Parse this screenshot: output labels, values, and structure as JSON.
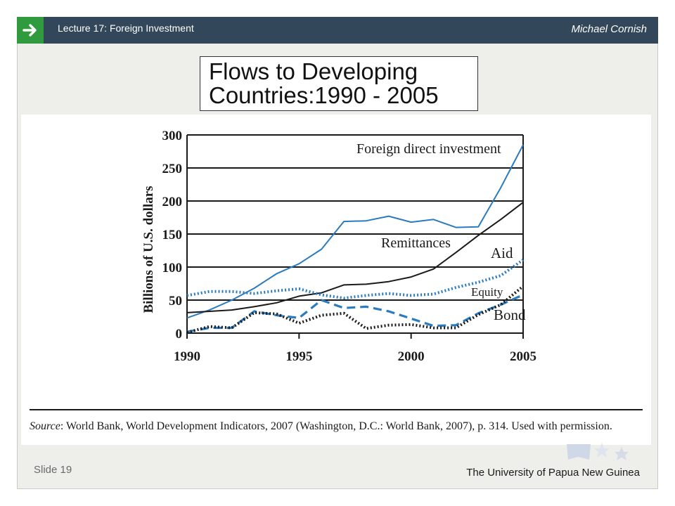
{
  "header": {
    "lecture": "Lecture 17:  Foreign Investment",
    "author": "Michael Cornish"
  },
  "title": {
    "line1": "Flows to Developing",
    "line2": "Countries:1990 - 2005"
  },
  "footer": {
    "slide": "Slide 19",
    "university": "The University of Papua New Guinea"
  },
  "source": {
    "prefix": "Source",
    "rest": ": World Bank, World Development Indicators, 2007 (Washington, D.C.: World Bank, 2007), p. 314. Used with permission."
  },
  "colors": {
    "header_bg": "#33475b",
    "accent_green": "#2f9a3e",
    "blue": "#2a7bbf",
    "black": "#1a1a1a"
  },
  "chart_data": {
    "type": "line",
    "ylabel": "Billions of U.S. dollars",
    "xlabel": "",
    "xlim": [
      1990,
      2005
    ],
    "ylim": [
      0,
      300
    ],
    "y_ticks": [
      0,
      50,
      100,
      150,
      200,
      250,
      300
    ],
    "x_ticks": [
      1990,
      1995,
      2000,
      2005
    ],
    "grid": "horizontal",
    "series": [
      {
        "name": "Foreign direct investment",
        "color": "#2a7bbf",
        "style": "solid",
        "x": [
          1990,
          1991,
          1992,
          1993,
          1994,
          1995,
          1996,
          1997,
          1998,
          1999,
          2000,
          2001,
          2002,
          2003,
          2004,
          2005
        ],
        "y": [
          23,
          35,
          50,
          68,
          90,
          105,
          127,
          169,
          170,
          177,
          168,
          172,
          160,
          161,
          220,
          285
        ]
      },
      {
        "name": "Remittances",
        "color": "#1a1a1a",
        "style": "solid",
        "x": [
          1990,
          1991,
          1992,
          1993,
          1994,
          1995,
          1996,
          1997,
          1998,
          1999,
          2000,
          2001,
          2002,
          2003,
          2004,
          2005
        ],
        "y": [
          31,
          33,
          35,
          40,
          46,
          56,
          61,
          73,
          74,
          78,
          85,
          97,
          122,
          148,
          172,
          198
        ]
      },
      {
        "name": "Aid",
        "color": "#2a7bbf",
        "style": "dotted",
        "x": [
          1990,
          1991,
          1992,
          1993,
          1994,
          1995,
          1996,
          1997,
          1998,
          1999,
          2000,
          2001,
          2002,
          2003,
          2004,
          2005
        ],
        "y": [
          57,
          63,
          63,
          60,
          64,
          67,
          58,
          53,
          57,
          60,
          57,
          59,
          69,
          77,
          87,
          111
        ]
      },
      {
        "name": "Equity",
        "color": "#2a7bbf",
        "style": "dashed",
        "x": [
          1990,
          1991,
          1992,
          1993,
          1994,
          1995,
          1996,
          1997,
          1998,
          1999,
          2000,
          2001,
          2002,
          2003,
          2004,
          2005
        ],
        "y": [
          2,
          8,
          8,
          33,
          27,
          23,
          50,
          38,
          40,
          33,
          22,
          11,
          12,
          30,
          43,
          58
        ]
      },
      {
        "name": "Bond",
        "color": "#1a1a1a",
        "style": "dotted",
        "x": [
          1990,
          1991,
          1992,
          1993,
          1994,
          1995,
          1996,
          1997,
          1998,
          1999,
          2000,
          2001,
          2002,
          2003,
          2004,
          2005
        ],
        "y": [
          1,
          10,
          8,
          31,
          29,
          15,
          27,
          30,
          7,
          12,
          13,
          8,
          8,
          28,
          43,
          71
        ]
      }
    ]
  }
}
